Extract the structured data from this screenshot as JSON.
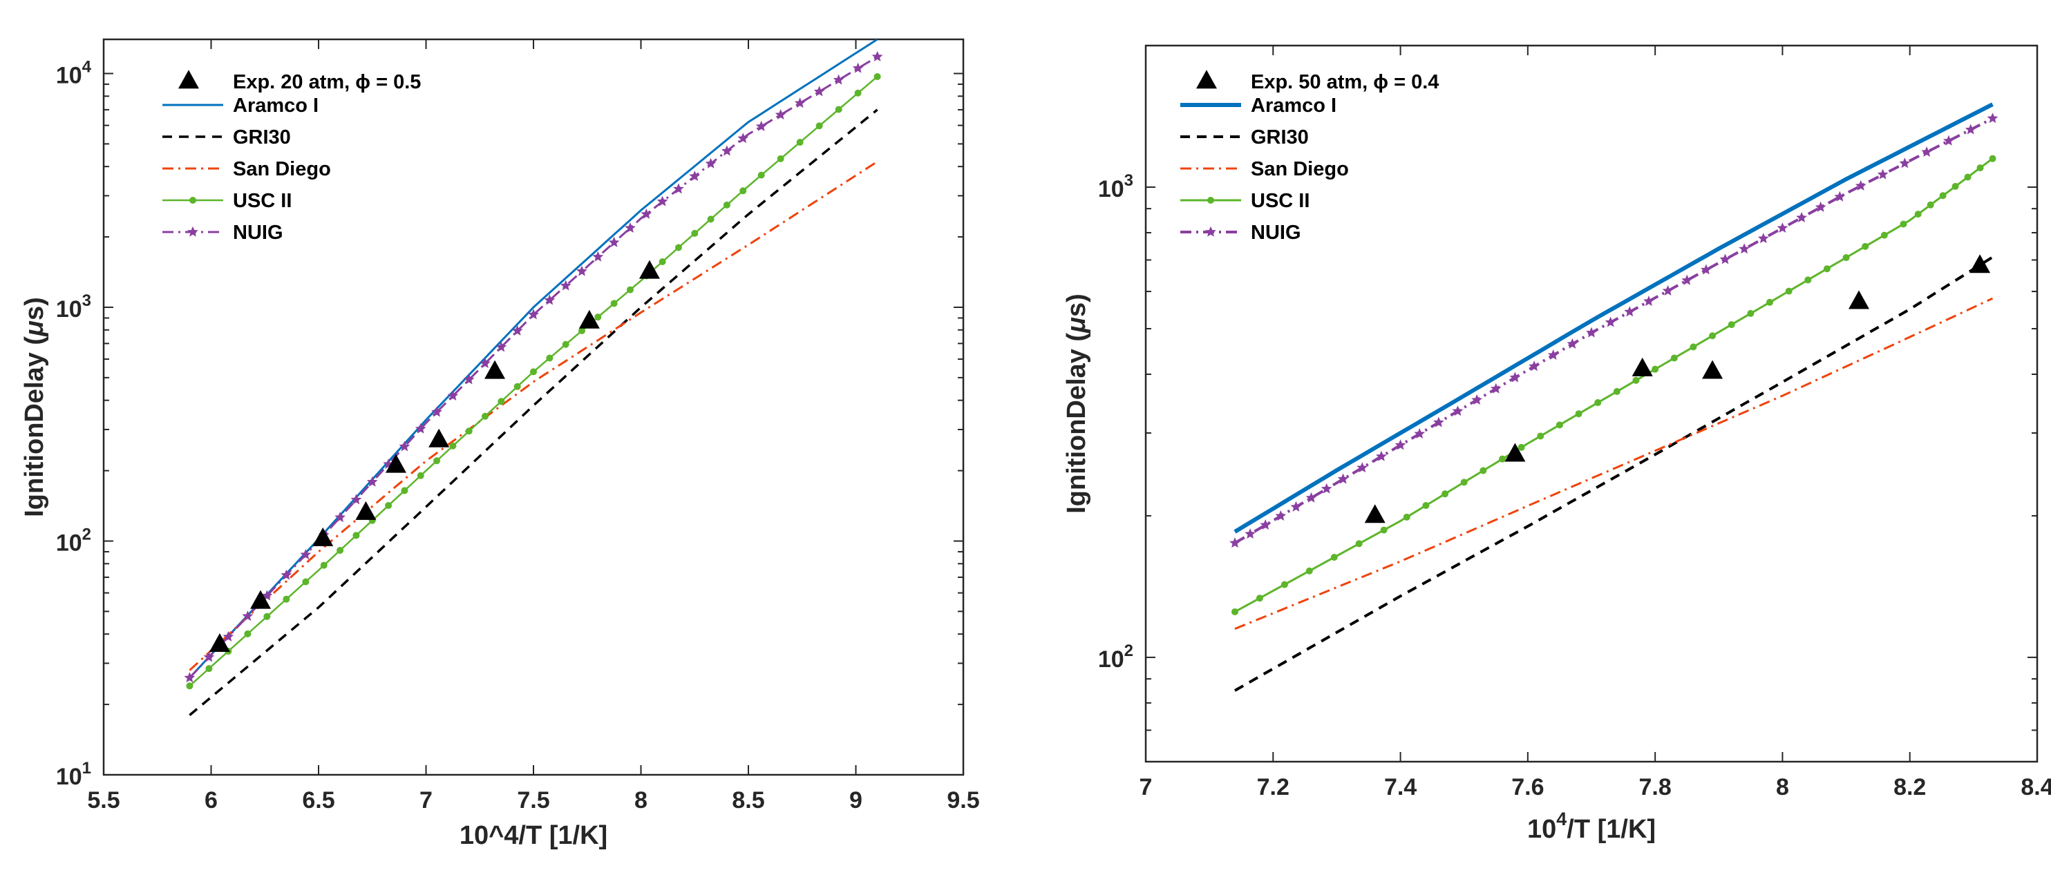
{
  "colors": {
    "aramco": "#0072BD",
    "gri30": "#000000",
    "sandiego": "#F0430C",
    "usc": "#5CB52A",
    "nuig": "#8A3FA0",
    "exp": "#000000"
  },
  "chart_data": [
    {
      "type": "line",
      "xlabel_text": "10^4/T [1/K]",
      "ylabel": "IgnitionDelay (μs)",
      "ylabel_prefix": "IgnitionDelay (",
      "ylabel_mu": "μ",
      "ylabel_suffix": "s)",
      "xscale": "linear",
      "yscale": "log",
      "xlim": [
        5.5,
        9.5
      ],
      "ylim": [
        10,
        14000
      ],
      "xticks": [
        5.5,
        6,
        6.5,
        7,
        7.5,
        8,
        8.5,
        9,
        9.5
      ],
      "xtick_labels": [
        "5.5",
        "6",
        "6.5",
        "7",
        "7.5",
        "8",
        "8.5",
        "9",
        "9.5"
      ],
      "yticks": [
        10,
        100,
        1000,
        10000
      ],
      "ytick_bases": [
        "10",
        "10",
        "10",
        "10"
      ],
      "ytick_exps": [
        "1",
        "2",
        "3",
        "4"
      ],
      "legend_location": "top-left",
      "experiment": {
        "label": "Exp. 20 atm, ϕ = 0.5",
        "x": [
          6.04,
          6.23,
          6.52,
          6.72,
          6.86,
          7.06,
          7.32,
          7.76,
          8.04
        ],
        "y": [
          36,
          55,
          102,
          132,
          210,
          270,
          530,
          870,
          1420
        ]
      },
      "series": [
        {
          "name": "Aramco I",
          "style": "aramco",
          "x": [
            5.9,
            6.5,
            7.0,
            7.5,
            8.0,
            8.5,
            9.1
          ],
          "y": [
            26,
            102,
            330,
            1000,
            2600,
            6200,
            14000
          ]
        },
        {
          "name": "GRI30",
          "style": "gri30",
          "x": [
            5.9,
            6.5,
            7.0,
            7.5,
            8.0,
            8.5,
            9.1
          ],
          "y": [
            18,
            52,
            140,
            380,
            1000,
            2500,
            7000
          ]
        },
        {
          "name": "San Diego",
          "style": "sandiego",
          "x": [
            5.9,
            6.5,
            7.0,
            7.5,
            8.0,
            8.5,
            9.1
          ],
          "y": [
            28,
            90,
            220,
            480,
            950,
            1850,
            4200
          ]
        },
        {
          "name": "USC II",
          "style": "usc",
          "x": [
            5.9,
            6.5,
            7.0,
            7.5,
            8.0,
            8.5,
            9.1
          ],
          "y": [
            24,
            75,
            200,
            530,
            1300,
            3300,
            9700
          ]
        },
        {
          "name": "NUIG",
          "style": "nuig",
          "x": [
            5.9,
            6.5,
            7.0,
            7.5,
            8.0,
            8.5,
            9.1
          ],
          "y": [
            26,
            100,
            320,
            930,
            2400,
            5500,
            11800
          ]
        }
      ]
    },
    {
      "type": "line",
      "xlabel_base": "10",
      "xlabel_exp": "4",
      "xlabel_suffix": "/T [1/K]",
      "ylabel": "IgnitionDelay (μs)",
      "ylabel_prefix": "IgnitionDelay (",
      "ylabel_mu": "μ",
      "ylabel_suffix": "s)",
      "xscale": "linear",
      "yscale": "log",
      "xlim": [
        7,
        8.4
      ],
      "ylim": [
        60,
        2000
      ],
      "xticks": [
        7,
        7.2,
        7.4,
        7.6,
        7.8,
        8,
        8.2,
        8.4
      ],
      "xtick_labels": [
        "7",
        "7.2",
        "7.4",
        "7.6",
        "7.8",
        "8",
        "8.2",
        "8.4"
      ],
      "yticks": [
        100,
        1000
      ],
      "ytick_bases": [
        "10",
        "10"
      ],
      "ytick_exps": [
        "2",
        "3"
      ],
      "legend_location": "top-left",
      "experiment": {
        "label": "Exp. 50 atm, ϕ = 0.4",
        "x": [
          7.36,
          7.58,
          7.78,
          7.89,
          8.12,
          8.31
        ],
        "y": [
          200,
          270,
          410,
          405,
          570,
          680
        ]
      },
      "series": [
        {
          "name": "Aramco I",
          "style": "aramco",
          "x": [
            7.14,
            7.3,
            7.5,
            7.7,
            7.9,
            8.1,
            8.33
          ],
          "y": [
            185,
            250,
            360,
            520,
            740,
            1040,
            1500
          ]
        },
        {
          "name": "GRI30",
          "style": "gri30",
          "x": [
            7.14,
            7.4,
            7.6,
            7.8,
            8.0,
            8.2,
            8.33
          ],
          "y": [
            85,
            135,
            190,
            270,
            385,
            550,
            710
          ]
        },
        {
          "name": "San Diego",
          "style": "sandiego",
          "x": [
            7.14,
            7.4,
            7.6,
            7.8,
            8.0,
            8.2,
            8.33
          ],
          "y": [
            115,
            160,
            210,
            275,
            360,
            480,
            580
          ]
        },
        {
          "name": "USC II",
          "style": "usc",
          "x": [
            7.14,
            7.4,
            7.6,
            7.8,
            8.0,
            8.2,
            8.33
          ],
          "y": [
            125,
            195,
            285,
            410,
            590,
            850,
            1150
          ]
        },
        {
          "name": "NUIG",
          "style": "nuig",
          "x": [
            7.14,
            7.3,
            7.5,
            7.7,
            7.9,
            8.1,
            8.33
          ],
          "y": [
            175,
            235,
            340,
            490,
            690,
            970,
            1400
          ]
        }
      ]
    }
  ]
}
